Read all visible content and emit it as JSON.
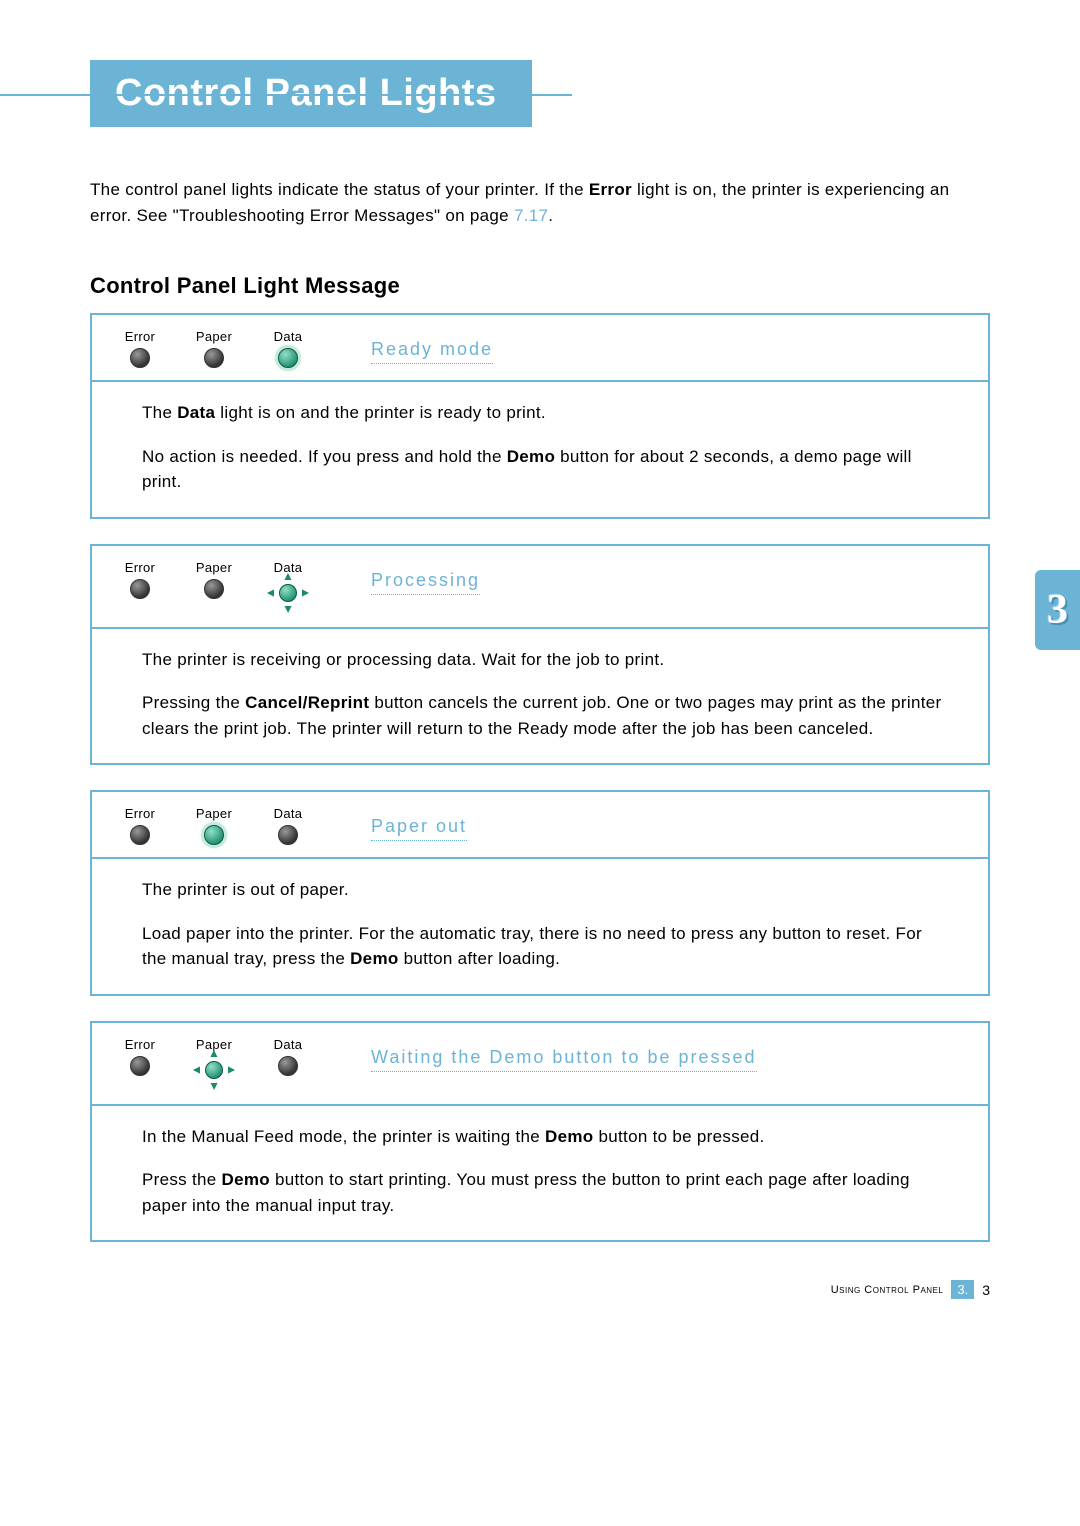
{
  "colors": {
    "accent": "#6bb4d6",
    "text": "#000000",
    "white": "#ffffff",
    "led_on_light": "#8fe0c8",
    "led_on_dark": "#1a8a6a",
    "led_off_light": "#999999",
    "led_off_dark": "#333333"
  },
  "title": "Control Panel Lights",
  "intro": {
    "prefix": "The control panel lights indicate the status of your printer. If the ",
    "bold1": "Error",
    "middle": " light is on, the printer is experiencing an error. See \"Troubleshooting Error Messages\" on page ",
    "ref": "7.17",
    "suffix": "."
  },
  "subhead": "Control Panel Light Message",
  "light_labels": {
    "error": "Error",
    "paper": "Paper",
    "data": "Data"
  },
  "sections": [
    {
      "mode": "Ready mode",
      "lights": {
        "error": "off",
        "paper": "off",
        "data": "on"
      },
      "p1": {
        "pre": "The ",
        "b1": "Data",
        "post": " light is on and the printer is ready to print."
      },
      "p2": {
        "pre": "No action is needed. If you press and hold the ",
        "b1": "Demo",
        "post": " button for about 2 seconds, a demo page will print."
      }
    },
    {
      "mode": "Processing",
      "lights": {
        "error": "off",
        "paper": "off",
        "data": "blink"
      },
      "p1": {
        "text": "The printer is receiving or processing data. Wait for the job to print."
      },
      "p2": {
        "pre": "Pressing the ",
        "b1": "Cancel/Reprint",
        "post": " button cancels the current job. One or two pages may print as the printer clears the print job. The printer will return to the Ready mode after the job has been canceled."
      }
    },
    {
      "mode": "Paper out",
      "lights": {
        "error": "off",
        "paper": "on",
        "data": "off"
      },
      "p1": {
        "text": "The printer is out of paper."
      },
      "p2": {
        "pre": "Load paper into the printer. For the automatic tray, there is no need to press any button to reset. For the manual tray, press the ",
        "b1": "Demo",
        "post": " button after loading."
      }
    },
    {
      "mode": "Waiting the Demo button to be pressed",
      "lights": {
        "error": "off",
        "paper": "blink",
        "data": "off"
      },
      "p1": {
        "pre": "In the Manual Feed mode, the printer is waiting the ",
        "b1": "Demo",
        "post": " button to be pressed."
      },
      "p2": {
        "pre": "Press the ",
        "b1": "Demo",
        "post": " button to start printing. You must press the button to print each page after loading paper into the manual input tray."
      }
    }
  ],
  "side_tab": "3",
  "footer": {
    "label": "Using Control Panel",
    "chapter": "3.",
    "page": "3"
  }
}
